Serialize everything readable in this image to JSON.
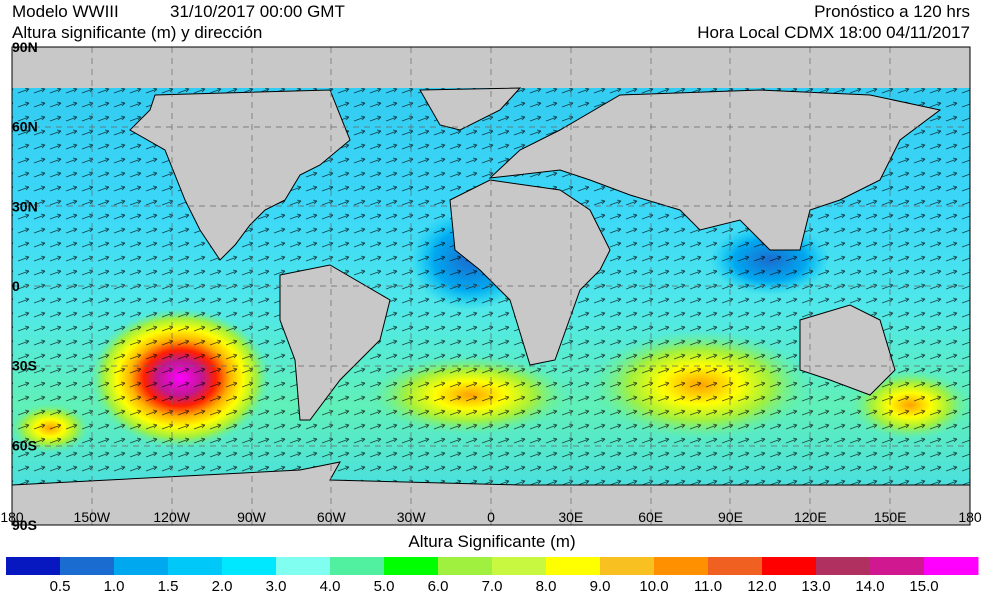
{
  "header": {
    "model": "Modelo WWIII",
    "init_time": "31/10/2017 00:00 GMT",
    "variable": "Altura significante (m) y dirección",
    "forecast": "Pronóstico a 120 hrs",
    "local_time": "Hora Local CDMX 18:00 04/11/2017"
  },
  "latitude_labels": [
    "90N",
    "60N",
    "30N",
    "0",
    "30S",
    "60S",
    "90S"
  ],
  "longitude_labels": [
    "180",
    "150W",
    "120W",
    "90W",
    "60W",
    "30W",
    "0",
    "30E",
    "60E",
    "90E",
    "120E",
    "150E",
    "180"
  ],
  "colorbar": {
    "title": "Altura Significante (m)",
    "colors": [
      "#0818c0",
      "#1a6cd0",
      "#00a8f0",
      "#00c8f8",
      "#00e8ff",
      "#80fff0",
      "#50f0a0",
      "#00ff00",
      "#a0f040",
      "#c8f840",
      "#ffff00",
      "#f8c020",
      "#ff9000",
      "#f06020",
      "#ff0000",
      "#b03060",
      "#d01890",
      "#ff00ff"
    ],
    "labels": [
      "0.5",
      "1.0",
      "1.5",
      "2.0",
      "3.0",
      "4.0",
      "5.0",
      "6.0",
      "7.0",
      "8.0",
      "9.0",
      "10.0",
      "11.0",
      "12.0",
      "13.0",
      "14.0",
      "15.0"
    ]
  }
}
